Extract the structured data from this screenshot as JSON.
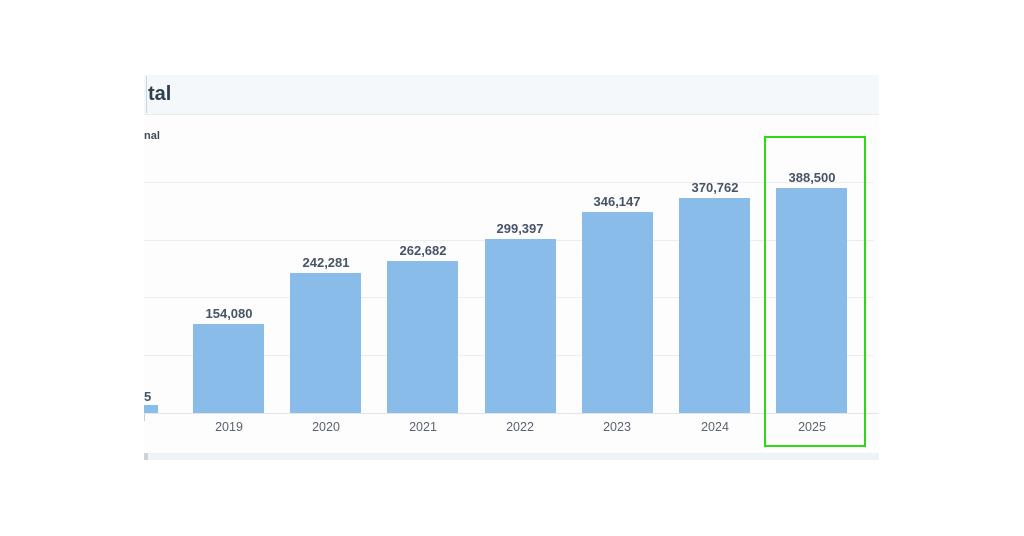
{
  "header": {
    "title": "tal"
  },
  "chart": {
    "sublabel": "nal",
    "partial_bar": {
      "visible_label": "5"
    },
    "highlight": {
      "category": "2025",
      "color": "#2bdb12"
    }
  },
  "chart_data": {
    "type": "bar",
    "categories": [
      "2019",
      "2020",
      "2021",
      "2022",
      "2023",
      "2024",
      "2025"
    ],
    "values": [
      154080,
      242281,
      262682,
      299397,
      346147,
      370762,
      388500
    ],
    "data_labels": [
      "154,080",
      "242,281",
      "262,682",
      "299,397",
      "346,147",
      "370,762",
      "388,500"
    ],
    "partial_first_bar_visible_label": "5",
    "title": "tal",
    "xlabel": "",
    "ylabel": "",
    "ylim": [
      0,
      440000
    ],
    "gridline_interval": 100000,
    "grid": true,
    "legend": false,
    "y_axis_tick_labels_visible": false,
    "highlighted_category": "2025",
    "bar_color": "#89bce8"
  }
}
